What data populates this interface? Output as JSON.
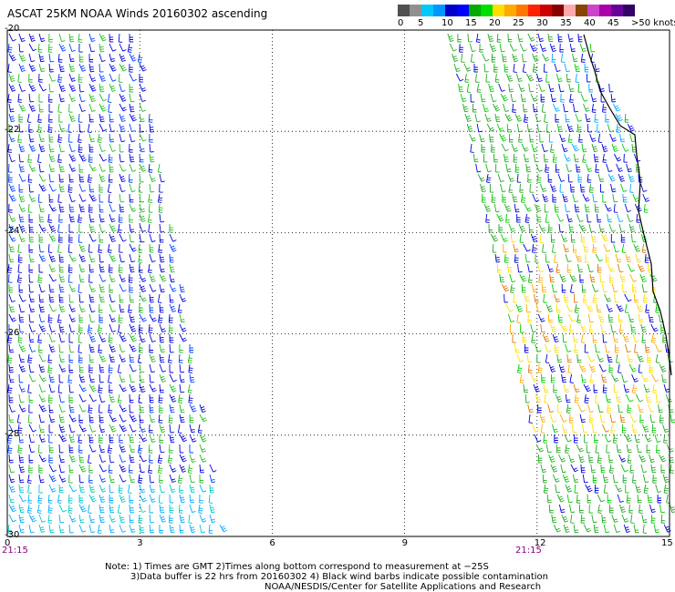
{
  "title": "ASCAT 25KM NOAA Winds 20160302 ascending",
  "legend": {
    "colors": [
      "#505050",
      "#909090",
      "#00c8ff",
      "#0096ff",
      "#0000c8",
      "#0000ff",
      "#00aa00",
      "#00dd00",
      "#ffdd00",
      "#ffaa00",
      "#ff7700",
      "#ff2200",
      "#cc0000",
      "#880000",
      "#ffaaaa",
      "#884400",
      "#cc44cc",
      "#aa00aa",
      "#660099",
      "#330066"
    ],
    "labels": [
      "0",
      "5",
      "10",
      "15",
      "20",
      "25",
      "30",
      "35",
      "40",
      "45",
      ">50 knots"
    ]
  },
  "y_axis": {
    "labels": [
      "-20",
      "-22",
      "-24",
      "-26",
      "-28",
      "-30"
    ]
  },
  "x_axis": {
    "labels": [
      "0",
      "3",
      "6",
      "9",
      "12",
      "15"
    ]
  },
  "swath_times": [
    "21:15",
    "21:15"
  ],
  "notes": [
    "Note: 1) Times are GMT 2)Times along bottom correspond to measurement at −25S",
    "3)Data buffer is 22 hrs from 20160302 4) Black wind barbs indicate possible contamination",
    "NOAA/NESDIS/Center for Satellite Applications and Research"
  ]
}
